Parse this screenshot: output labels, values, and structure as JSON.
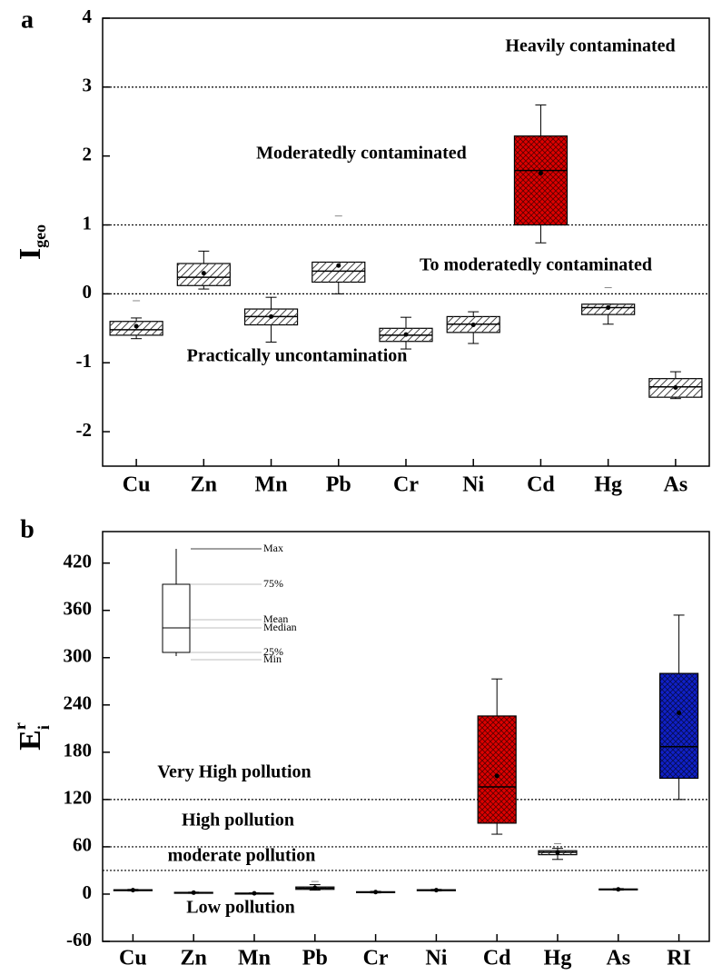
{
  "chart_data": [
    {
      "type": "box",
      "panel": "a",
      "ylabel": "I",
      "ylabel_sub": "geo",
      "categories": [
        "Cu",
        "Zn",
        "Mn",
        "Pb",
        "Cr",
        "Ni",
        "Cd",
        "Hg",
        "As"
      ],
      "ylim": [
        -2.5,
        4
      ],
      "yticks": [
        -2,
        -1,
        0,
        1,
        2,
        3,
        4
      ],
      "ref_lines": [
        3,
        1,
        0
      ],
      "annotations": [
        "Heavily contaminated",
        "Moderatedly contaminated",
        "To moderatedly contaminated",
        "Practically uncontamination"
      ],
      "colors": [
        "#ffffff",
        "#ffffff",
        "#ffffff",
        "#ffffff",
        "#ffffff",
        "#ffffff",
        "#dd0000",
        "#ffffff",
        "#ffffff"
      ],
      "boxes": [
        {
          "min": -0.65,
          "q1": -0.6,
          "median": -0.52,
          "q3": -0.4,
          "max": -0.35,
          "mean": -0.47,
          "outliers": [
            -0.1
          ]
        },
        {
          "min": 0.07,
          "q1": 0.12,
          "median": 0.24,
          "q3": 0.44,
          "max": 0.62,
          "mean": 0.3
        },
        {
          "min": -0.7,
          "q1": -0.45,
          "median": -0.33,
          "q3": -0.22,
          "max": -0.05,
          "mean": -0.33
        },
        {
          "min": 0.0,
          "q1": 0.17,
          "median": 0.33,
          "q3": 0.46,
          "max": 0.46,
          "mean": 0.41,
          "outliers": [
            1.13
          ]
        },
        {
          "min": -0.8,
          "q1": -0.69,
          "median": -0.6,
          "q3": -0.5,
          "max": -0.34,
          "mean": -0.59
        },
        {
          "min": -0.72,
          "q1": -0.56,
          "median": -0.44,
          "q3": -0.33,
          "max": -0.26,
          "mean": -0.45
        },
        {
          "min": 0.74,
          "q1": 1.0,
          "median": 1.79,
          "q3": 2.29,
          "max": 2.74,
          "mean": 1.75
        },
        {
          "min": -0.44,
          "q1": -0.3,
          "median": -0.2,
          "q3": -0.15,
          "max": -0.15,
          "mean": -0.2,
          "outliers": [
            0.09
          ]
        },
        {
          "min": -1.52,
          "q1": -1.5,
          "median": -1.35,
          "q3": -1.23,
          "max": -1.13,
          "mean": -1.36
        }
      ]
    },
    {
      "type": "box",
      "panel": "b",
      "ylabel": "E",
      "ylabel_sup": "r",
      "ylabel_sub": "i",
      "categories": [
        "Cu",
        "Zn",
        "Mn",
        "Pb",
        "Cr",
        "Ni",
        "Cd",
        "Hg",
        "As",
        "RI"
      ],
      "ylim": [
        -60,
        460
      ],
      "yticks": [
        -60,
        0,
        60,
        120,
        180,
        240,
        300,
        360,
        420
      ],
      "ref_lines": [
        120,
        60,
        30
      ],
      "annotations": [
        "Very High pollution",
        "High pollution",
        "moderate pollution",
        "Low pollution"
      ],
      "key_labels": [
        "Max",
        "75%",
        "Mean",
        "Median",
        "25%",
        "Min"
      ],
      "colors": [
        "#ffffff",
        "#ffffff",
        "#ffffff",
        "#ffffff",
        "#ffffff",
        "#ffffff",
        "#dd0000",
        "#ffffff",
        "#ffffff",
        "#1020c8"
      ],
      "boxes": [
        {
          "min": 4,
          "q1": 4.5,
          "median": 5,
          "q3": 5.5,
          "max": 6,
          "mean": 5
        },
        {
          "min": 1,
          "q1": 1.5,
          "median": 1.8,
          "q3": 2.2,
          "max": 2.5,
          "mean": 1.8
        },
        {
          "min": 0.5,
          "q1": 0.8,
          "median": 1,
          "q3": 1.2,
          "max": 1.5,
          "mean": 1
        },
        {
          "min": 5,
          "q1": 6,
          "median": 7.5,
          "q3": 9,
          "max": 12,
          "mean": 8,
          "outliers": [
            16
          ]
        },
        {
          "min": 1.5,
          "q1": 2,
          "median": 2.5,
          "q3": 3,
          "max": 3.5,
          "mean": 2.5
        },
        {
          "min": 4,
          "q1": 4.5,
          "median": 5,
          "q3": 5.5,
          "max": 6,
          "mean": 5
        },
        {
          "min": 76,
          "q1": 90,
          "median": 136,
          "q3": 226,
          "max": 273,
          "mean": 150
        },
        {
          "min": 44,
          "q1": 50,
          "median": 53,
          "q3": 55,
          "max": 58,
          "mean": 53,
          "outliers": [
            64
          ]
        },
        {
          "min": 5,
          "q1": 5.5,
          "median": 6,
          "q3": 6.5,
          "max": 7,
          "mean": 6
        },
        {
          "min": 120,
          "q1": 147,
          "median": 187,
          "q3": 280,
          "max": 354,
          "mean": 230
        }
      ]
    }
  ]
}
